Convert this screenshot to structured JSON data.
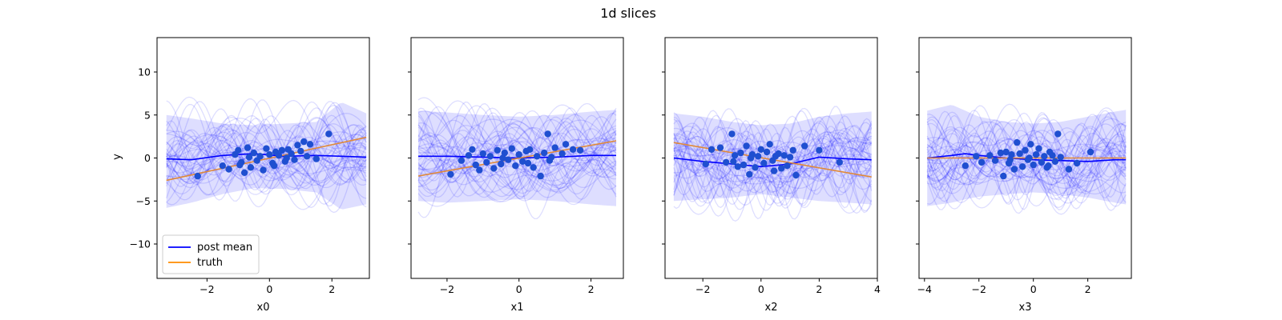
{
  "figure": {
    "title": "1d slices",
    "ylabel": "y"
  },
  "legend": {
    "position": "lower-left",
    "post_mean_label": "post mean",
    "truth_label": "truth"
  },
  "colors": {
    "post_mean": "#0000ff",
    "truth": "#ff8c00",
    "band": "#0000ff",
    "samples": "#0000ff",
    "points": "#1f4fd0",
    "truth_line": "#e08a3a"
  },
  "chart_data": [
    {
      "type": "line",
      "xlabel": "x0",
      "xlim": [
        -3.6,
        3.2
      ],
      "ylim": [
        -14,
        14
      ],
      "xticks": [
        -2,
        0,
        2
      ],
      "yticks": [
        -10,
        -5,
        0,
        5,
        10
      ],
      "show_ylabel": true,
      "show_yticklabels": true,
      "legend": true,
      "truth": {
        "x": [
          -3.3,
          3.1
        ],
        "y": [
          -2.6,
          2.4
        ]
      },
      "post_mean": {
        "x": [
          -3.3,
          -2.5,
          -1.5,
          -0.5,
          0.5,
          1.5,
          2.3,
          3.1
        ],
        "y": [
          -0.1,
          -0.2,
          0.3,
          0.5,
          0.2,
          0.3,
          0.2,
          0.1
        ]
      },
      "band_upper": {
        "x": [
          -3.3,
          -2.5,
          -1.5,
          -0.5,
          0.5,
          1.5,
          2.3,
          3.1
        ],
        "y": [
          5.0,
          4.6,
          4.0,
          3.8,
          4.0,
          4.2,
          6.5,
          5.2
        ]
      },
      "band_lower": {
        "x": [
          -3.3,
          -2.5,
          -1.5,
          -0.5,
          0.5,
          1.5,
          2.3,
          3.1
        ],
        "y": [
          -5.8,
          -5.2,
          -4.2,
          -3.5,
          -3.6,
          -4.0,
          -6.0,
          -5.4
        ]
      },
      "points": {
        "x": [
          -2.3,
          -1.5,
          -1.3,
          -1.1,
          -1.0,
          -0.9,
          -0.8,
          -0.7,
          -0.6,
          -0.5,
          -0.4,
          -0.3,
          -0.2,
          -0.1,
          0.0,
          0.1,
          0.2,
          0.3,
          0.4,
          0.5,
          0.6,
          0.7,
          0.8,
          0.9,
          1.0,
          1.1,
          1.2,
          1.3,
          1.5,
          1.9,
          -0.95,
          -0.65,
          0.15,
          0.55
        ],
        "y": [
          -2.1,
          -0.9,
          -1.3,
          0.4,
          0.9,
          -0.5,
          -1.7,
          1.2,
          -1.1,
          0.6,
          -0.3,
          0.2,
          -1.4,
          1.1,
          0.4,
          -0.6,
          0.7,
          0.3,
          0.9,
          -0.4,
          1.0,
          0.5,
          -0.2,
          1.5,
          0.8,
          1.9,
          0.2,
          1.6,
          -0.1,
          2.8,
          -0.8,
          0.1,
          -0.9,
          0.0
        ]
      }
    },
    {
      "type": "line",
      "xlabel": "x1",
      "xlim": [
        -3.0,
        2.9
      ],
      "ylim": [
        -14,
        14
      ],
      "xticks": [
        -2,
        0,
        2
      ],
      "yticks": [
        -10,
        -5,
        0,
        5,
        10
      ],
      "show_ylabel": false,
      "show_yticklabels": false,
      "legend": false,
      "truth": {
        "x": [
          -2.8,
          2.7
        ],
        "y": [
          -2.1,
          2.0
        ]
      },
      "post_mean": {
        "x": [
          -2.8,
          -2.0,
          -1.0,
          0.0,
          1.0,
          2.0,
          2.7
        ],
        "y": [
          0.2,
          0.2,
          0.1,
          0.0,
          0.1,
          0.3,
          0.3
        ]
      },
      "band_upper": {
        "x": [
          -2.8,
          -2.0,
          -1.0,
          0.0,
          1.0,
          2.0,
          2.7
        ],
        "y": [
          5.5,
          5.3,
          5.0,
          4.8,
          5.0,
          5.4,
          5.6
        ]
      },
      "band_lower": {
        "x": [
          -2.8,
          -2.0,
          -1.0,
          0.0,
          1.0,
          2.0,
          2.7
        ],
        "y": [
          -5.0,
          -5.2,
          -5.0,
          -4.8,
          -5.0,
          -5.4,
          -5.6
        ]
      },
      "points": {
        "x": [
          -1.9,
          -1.6,
          -1.4,
          -1.3,
          -1.2,
          -1.1,
          -1.0,
          -0.9,
          -0.8,
          -0.7,
          -0.6,
          -0.5,
          -0.4,
          -0.3,
          -0.2,
          -0.1,
          0.0,
          0.1,
          0.2,
          0.3,
          0.4,
          0.5,
          0.6,
          0.7,
          0.8,
          0.9,
          1.0,
          1.2,
          1.3,
          1.5,
          1.7,
          -0.45,
          0.25,
          0.85
        ],
        "y": [
          -1.9,
          -0.3,
          0.3,
          1.0,
          -0.8,
          -1.4,
          0.5,
          -0.5,
          0.2,
          -1.2,
          0.9,
          -0.7,
          0.6,
          -0.2,
          1.1,
          -0.9,
          0.4,
          -0.4,
          0.8,
          1.0,
          -1.1,
          0.2,
          -2.1,
          0.6,
          2.8,
          0.1,
          1.2,
          0.5,
          1.6,
          1.0,
          0.9,
          0.0,
          -0.6,
          -0.3
        ]
      }
    },
    {
      "type": "line",
      "xlabel": "x2",
      "xlim": [
        -3.3,
        4.0
      ],
      "ylim": [
        -14,
        14
      ],
      "xticks": [
        -2,
        0,
        2,
        4
      ],
      "yticks": [
        -10,
        -5,
        0,
        5,
        10
      ],
      "show_ylabel": false,
      "show_yticklabels": false,
      "legend": false,
      "truth": {
        "x": [
          -3.0,
          3.8
        ],
        "y": [
          1.8,
          -2.2
        ]
      },
      "post_mean": {
        "x": [
          -3.0,
          -2.0,
          -1.0,
          0.0,
          1.0,
          2.0,
          3.0,
          3.8
        ],
        "y": [
          0.0,
          -0.4,
          -0.7,
          -1.0,
          -0.7,
          0.1,
          -0.1,
          -0.2
        ]
      },
      "band_upper": {
        "x": [
          -3.0,
          -2.0,
          -1.0,
          0.0,
          1.0,
          2.0,
          3.0,
          3.8
        ],
        "y": [
          5.2,
          4.8,
          4.2,
          3.8,
          4.0,
          4.8,
          5.2,
          5.4
        ]
      },
      "band_lower": {
        "x": [
          -3.0,
          -2.0,
          -1.0,
          0.0,
          1.0,
          2.0,
          3.0,
          3.8
        ],
        "y": [
          -5.0,
          -4.8,
          -4.6,
          -4.2,
          -4.6,
          -5.0,
          -5.2,
          -5.4
        ]
      },
      "points": {
        "x": [
          -1.9,
          -1.7,
          -1.4,
          -1.2,
          -1.0,
          -0.9,
          -0.8,
          -0.7,
          -0.6,
          -0.5,
          -0.4,
          -0.3,
          -0.2,
          -0.1,
          0.0,
          0.1,
          0.2,
          0.3,
          0.4,
          0.5,
          0.6,
          0.7,
          0.8,
          0.9,
          1.1,
          1.2,
          1.5,
          2.0,
          2.7,
          -0.95,
          -0.35,
          0.45,
          1.0
        ],
        "y": [
          -0.7,
          1.0,
          1.2,
          -0.5,
          2.8,
          0.3,
          -1.0,
          0.6,
          -0.8,
          1.4,
          -1.9,
          0.4,
          -1.1,
          0.2,
          1.0,
          -0.6,
          0.7,
          1.6,
          -0.3,
          0.2,
          0.5,
          -1.2,
          0.3,
          -0.9,
          0.9,
          -2.0,
          1.4,
          0.9,
          -0.5,
          -0.4,
          0.0,
          -1.5,
          0.1
        ]
      }
    },
    {
      "type": "line",
      "xlabel": "x3",
      "xlim": [
        -4.2,
        3.6
      ],
      "ylim": [
        -14,
        14
      ],
      "xticks": [
        -4,
        -2,
        0,
        2
      ],
      "yticks": [
        -10,
        -5,
        0,
        5,
        10
      ],
      "show_ylabel": false,
      "show_yticklabels": false,
      "legend": false,
      "truth": {
        "x": [
          -3.9,
          3.4
        ],
        "y": [
          0.0,
          0.0
        ]
      },
      "post_mean": {
        "x": [
          -3.9,
          -3.0,
          -2.5,
          -2.0,
          -1.0,
          0.0,
          1.0,
          2.0,
          3.0,
          3.4
        ],
        "y": [
          0.0,
          0.3,
          0.5,
          0.3,
          0.0,
          -0.2,
          -0.3,
          -0.4,
          -0.2,
          -0.2
        ]
      },
      "band_upper": {
        "x": [
          -3.9,
          -3.0,
          -2.5,
          -2.0,
          -1.0,
          0.0,
          1.0,
          2.0,
          3.0,
          3.4
        ],
        "y": [
          5.5,
          6.2,
          5.5,
          4.8,
          4.2,
          4.0,
          4.2,
          4.8,
          5.4,
          5.6
        ]
      },
      "band_lower": {
        "x": [
          -3.9,
          -3.0,
          -2.5,
          -2.0,
          -1.0,
          0.0,
          1.0,
          2.0,
          3.0,
          3.4
        ],
        "y": [
          -5.6,
          -5.2,
          -4.8,
          -4.5,
          -4.2,
          -4.0,
          -4.2,
          -4.6,
          -5.2,
          -5.4
        ]
      },
      "points": {
        "x": [
          -2.5,
          -2.1,
          -1.9,
          -1.6,
          -1.4,
          -1.2,
          -1.1,
          -1.0,
          -0.9,
          -0.8,
          -0.7,
          -0.6,
          -0.5,
          -0.4,
          -0.3,
          -0.2,
          -0.1,
          0.0,
          0.1,
          0.2,
          0.3,
          0.4,
          0.5,
          0.6,
          0.7,
          0.8,
          0.9,
          1.0,
          1.3,
          1.6,
          2.1,
          -0.85,
          -0.15,
          0.55
        ],
        "y": [
          -0.9,
          0.2,
          -0.5,
          0.3,
          -0.3,
          0.6,
          -2.1,
          0.7,
          -0.6,
          0.4,
          -1.3,
          1.8,
          0.5,
          -1.0,
          0.9,
          -0.2,
          1.6,
          -0.8,
          0.4,
          1.1,
          -0.5,
          0.2,
          -1.1,
          0.7,
          0.3,
          -0.4,
          2.8,
          0.1,
          -1.3,
          -0.6,
          0.7,
          -0.2,
          0.0,
          -0.9
        ]
      }
    }
  ]
}
